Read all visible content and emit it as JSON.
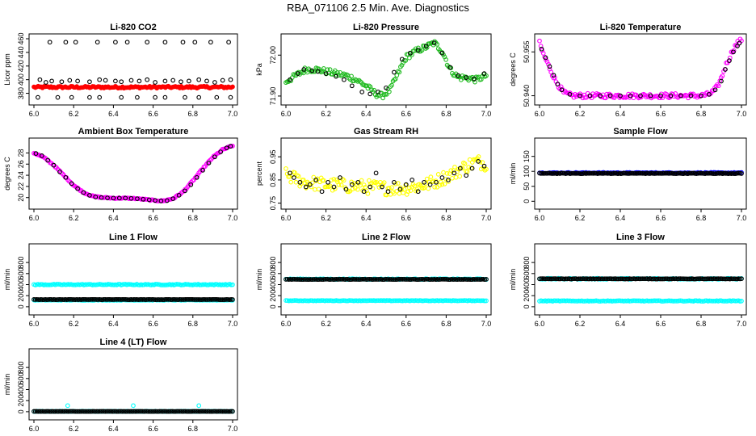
{
  "figure_title": "RBA_071106  2.5 Min. Ave. Diagnostics",
  "colors": {
    "red": "#ff0000",
    "green": "#22bb22",
    "magenta": "#ff00ff",
    "yellow": "#ffff00",
    "blue": "#0000ff",
    "cyan": "#00ffff",
    "black": "#000000"
  },
  "chart_data": [
    {
      "type": "scatter",
      "title": "Li-820 CO2",
      "xlabel": "",
      "ylabel": "Licor ppm",
      "xlim": [
        6.0,
        7.0
      ],
      "ylim": [
        370,
        460
      ],
      "xticks": [
        "6.0",
        "6.2",
        "6.4",
        "6.6",
        "6.8",
        "7.0"
      ],
      "yticks": [
        "380",
        "400",
        "420",
        "440",
        "460"
      ],
      "series": [
        {
          "name": "dense",
          "color": "red",
          "filled": true,
          "shape": "band",
          "x_start": 6.0,
          "x_end": 7.0,
          "y": 389,
          "jitter": 1.5
        },
        {
          "name": "scatter",
          "color": "black",
          "shape": "points",
          "x": [
            6.03,
            6.06,
            6.09,
            6.14,
            6.18,
            6.22,
            6.28,
            6.33,
            6.36,
            6.41,
            6.44,
            6.49,
            6.53,
            6.57,
            6.61,
            6.66,
            6.7,
            6.74,
            6.78,
            6.83,
            6.87,
            6.91,
            6.95,
            6.99
          ],
          "y": [
            400,
            396,
            398,
            397,
            399,
            398,
            397,
            400,
            399,
            398,
            397,
            399,
            398,
            400,
            396,
            398,
            399,
            397,
            398,
            400,
            398,
            396,
            399,
            400
          ]
        },
        {
          "name": "scatter",
          "color": "black",
          "shape": "points",
          "x": [
            6.08,
            6.16,
            6.21,
            6.32,
            6.41,
            6.47,
            6.57,
            6.66,
            6.75,
            6.81,
            6.89,
            6.98
          ],
          "y": [
            455,
            455,
            455,
            455,
            455,
            455,
            455,
            455,
            455,
            455,
            455,
            455
          ]
        },
        {
          "name": "scatter",
          "color": "black",
          "shape": "points",
          "x": [
            6.02,
            6.12,
            6.19,
            6.28,
            6.33,
            6.44,
            6.52,
            6.61,
            6.66,
            6.76,
            6.83,
            6.92,
            6.99
          ],
          "y": [
            374,
            374,
            374,
            374,
            374,
            374,
            374,
            374,
            374,
            374,
            374,
            374,
            374
          ]
        }
      ]
    },
    {
      "type": "scatter",
      "title": "Li-820 Pressure",
      "xlabel": "",
      "ylabel": "kPa",
      "xlim": [
        6.0,
        7.0
      ],
      "ylim": [
        71.89,
        72.04
      ],
      "xticks": [
        "6.0",
        "6.2",
        "6.4",
        "6.6",
        "6.8",
        "7.0"
      ],
      "yticks": [
        "71.90",
        "72.00"
      ],
      "series": [
        {
          "name": "dense",
          "color": "green",
          "shape": "curve",
          "x": [
            6.0,
            6.05,
            6.1,
            6.15,
            6.2,
            6.25,
            6.3,
            6.35,
            6.4,
            6.45,
            6.48,
            6.52,
            6.56,
            6.6,
            6.65,
            6.7,
            6.74,
            6.78,
            6.82,
            6.86,
            6.9,
            6.95,
            7.0
          ],
          "y": [
            71.935,
            71.95,
            71.965,
            71.965,
            71.96,
            71.955,
            71.95,
            71.94,
            71.925,
            71.905,
            71.9,
            71.915,
            71.955,
            71.995,
            72.01,
            72.02,
            72.03,
            72.01,
            71.965,
            71.945,
            71.945,
            71.94,
            71.95
          ],
          "jitter": 0.007
        },
        {
          "name": "black",
          "color": "black",
          "shape": "points",
          "x": [
            6.02,
            6.06,
            6.09,
            6.13,
            6.16,
            6.2,
            6.25,
            6.29,
            6.33,
            6.38,
            6.42,
            6.46,
            6.5,
            6.54,
            6.58,
            6.62,
            6.66,
            6.7,
            6.74,
            6.78,
            6.82,
            6.86,
            6.9,
            6.94,
            6.99
          ],
          "y": [
            71.94,
            71.955,
            71.965,
            71.962,
            71.96,
            71.955,
            71.948,
            71.94,
            71.925,
            71.91,
            71.905,
            71.91,
            71.92,
            71.958,
            71.99,
            72.005,
            72.012,
            72.022,
            72.03,
            72.005,
            71.97,
            71.95,
            71.945,
            71.942,
            71.955
          ]
        }
      ]
    },
    {
      "type": "scatter",
      "title": "Li-820 Temperature",
      "xlabel": "",
      "ylabel": "degrees C",
      "xlim": [
        6.0,
        7.0
      ],
      "ylim": [
        50.9385,
        50.9595
      ],
      "xticks": [
        "6.0",
        "6.2",
        "6.4",
        "6.6",
        "6.8",
        "7.0"
      ],
      "yticks": [
        "50.940",
        "50.955"
      ],
      "series": [
        {
          "name": "dense",
          "color": "magenta",
          "shape": "curve",
          "x": [
            6.0,
            6.02,
            6.04,
            6.06,
            6.08,
            6.1,
            6.12,
            6.14,
            6.16,
            6.2,
            6.3,
            6.5,
            6.7,
            6.8,
            6.84,
            6.86,
            6.88,
            6.9,
            6.92,
            6.94,
            6.96,
            6.98,
            7.0
          ],
          "y": [
            50.958,
            50.954,
            50.951,
            50.948,
            50.945,
            50.943,
            50.941,
            50.9405,
            50.94,
            50.94,
            50.94,
            50.94,
            50.94,
            50.94,
            50.9405,
            50.9415,
            50.943,
            50.946,
            50.95,
            50.953,
            50.956,
            50.958,
            50.959
          ],
          "jitter": 0.0008
        },
        {
          "name": "black",
          "color": "black",
          "shape": "points",
          "x": [
            6.01,
            6.03,
            6.05,
            6.07,
            6.09,
            6.11,
            6.15,
            6.2,
            6.25,
            6.3,
            6.35,
            6.4,
            6.45,
            6.5,
            6.55,
            6.6,
            6.65,
            6.7,
            6.75,
            6.8,
            6.84,
            6.87,
            6.9,
            6.92,
            6.94,
            6.96,
            6.98,
            6.99
          ],
          "y": [
            50.956,
            50.953,
            50.95,
            50.947,
            50.944,
            50.942,
            50.9405,
            50.94,
            50.94,
            50.94,
            50.94,
            50.94,
            50.94,
            50.94,
            50.94,
            50.94,
            50.94,
            50.94,
            50.94,
            50.94,
            50.9405,
            50.942,
            50.945,
            50.949,
            50.952,
            50.955,
            50.957,
            50.958
          ]
        }
      ]
    },
    {
      "type": "scatter",
      "title": "Ambient Box Temperature",
      "xlabel": "",
      "ylabel": "degrees C",
      "xlim": [
        6.0,
        7.0
      ],
      "ylim": [
        18.8,
        29.8
      ],
      "xticks": [
        "6.0",
        "6.2",
        "6.4",
        "6.6",
        "6.8",
        "7.0"
      ],
      "yticks": [
        "20",
        "22",
        "24",
        "26",
        "28"
      ],
      "series": [
        {
          "name": "dense",
          "color": "magenta",
          "shape": "curve",
          "x": [
            6.0,
            6.05,
            6.1,
            6.15,
            6.2,
            6.25,
            6.3,
            6.35,
            6.4,
            6.45,
            6.5,
            6.55,
            6.6,
            6.65,
            6.7,
            6.75,
            6.8,
            6.85,
            6.9,
            6.95,
            7.0
          ],
          "y": [
            28.0,
            27.2,
            25.8,
            24.0,
            22.2,
            20.9,
            20.2,
            20.0,
            19.9,
            19.9,
            19.85,
            19.7,
            19.5,
            19.4,
            19.8,
            21.0,
            23.0,
            25.2,
            27.2,
            28.6,
            29.3
          ],
          "jitter": 0.1
        },
        {
          "name": "black",
          "color": "black",
          "shape": "points",
          "x": [
            6.01,
            6.04,
            6.07,
            6.1,
            6.13,
            6.16,
            6.19,
            6.22,
            6.25,
            6.28,
            6.31,
            6.34,
            6.37,
            6.4,
            6.43,
            6.46,
            6.49,
            6.52,
            6.55,
            6.58,
            6.61,
            6.64,
            6.67,
            6.7,
            6.73,
            6.76,
            6.79,
            6.82,
            6.85,
            6.88,
            6.91,
            6.94,
            6.97,
            6.99
          ],
          "y": [
            27.9,
            27.5,
            26.7,
            25.8,
            24.6,
            23.6,
            22.5,
            21.6,
            20.9,
            20.4,
            20.1,
            20.0,
            19.95,
            19.9,
            19.9,
            19.9,
            19.85,
            19.8,
            19.7,
            19.6,
            19.5,
            19.4,
            19.45,
            19.8,
            20.4,
            21.2,
            22.3,
            23.6,
            24.9,
            26.2,
            27.3,
            28.2,
            28.9,
            29.2
          ]
        }
      ]
    },
    {
      "type": "scatter",
      "title": "Gas Stream RH",
      "xlabel": "",
      "ylabel": "percent",
      "xlim": [
        6.0,
        7.0
      ],
      "ylim": [
        0.745,
        1.01
      ],
      "xticks": [
        "6.0",
        "6.2",
        "6.4",
        "6.6",
        "6.8",
        "7.0"
      ],
      "yticks": [
        "0.75",
        "0.85",
        "0.95"
      ],
      "series": [
        {
          "name": "dense",
          "color": "yellow",
          "shape": "curve",
          "x": [
            6.0,
            6.1,
            6.2,
            6.3,
            6.4,
            6.5,
            6.6,
            6.7,
            6.75,
            6.8,
            6.85,
            6.9,
            6.95,
            7.0
          ],
          "y": [
            0.87,
            0.84,
            0.83,
            0.825,
            0.82,
            0.815,
            0.815,
            0.83,
            0.845,
            0.865,
            0.885,
            0.91,
            0.93,
            0.92
          ],
          "jitter": 0.03
        },
        {
          "name": "black",
          "color": "black",
          "shape": "points",
          "x": [
            6.02,
            6.04,
            6.07,
            6.1,
            6.12,
            6.15,
            6.18,
            6.21,
            6.24,
            6.27,
            6.3,
            6.33,
            6.36,
            6.39,
            6.42,
            6.45,
            6.48,
            6.51,
            6.54,
            6.57,
            6.6,
            6.63,
            6.66,
            6.69,
            6.72,
            6.75,
            6.78,
            6.81,
            6.84,
            6.87,
            6.9,
            6.93,
            6.96,
            6.99
          ],
          "y": [
            0.88,
            0.86,
            0.84,
            0.82,
            0.83,
            0.85,
            0.8,
            0.84,
            0.82,
            0.86,
            0.81,
            0.83,
            0.84,
            0.8,
            0.82,
            0.88,
            0.82,
            0.8,
            0.84,
            0.81,
            0.83,
            0.85,
            0.8,
            0.84,
            0.83,
            0.84,
            0.86,
            0.85,
            0.88,
            0.9,
            0.87,
            0.9,
            0.93,
            0.91
          ]
        }
      ]
    },
    {
      "type": "scatter",
      "title": "Sample Flow",
      "xlabel": "",
      "ylabel": "ml/min",
      "xlim": [
        6.0,
        7.0
      ],
      "ylim": [
        -10,
        195
      ],
      "xticks": [
        "6.0",
        "6.2",
        "6.4",
        "6.6",
        "6.8",
        "7.0"
      ],
      "yticks": [
        "0",
        "50",
        "100",
        "150"
      ],
      "series": [
        {
          "name": "dense",
          "color": "blue",
          "shape": "band",
          "x_start": 6.0,
          "x_end": 7.0,
          "y": 95,
          "jitter": 1.5
        },
        {
          "name": "black",
          "color": "black",
          "shape": "band",
          "x_start": 6.0,
          "x_end": 7.0,
          "y": 93,
          "jitter": 1.0
        }
      ]
    },
    {
      "type": "scatter",
      "title": "Line 1 Flow",
      "xlabel": "",
      "ylabel": "ml/min",
      "xlim": [
        6.0,
        7.0
      ],
      "ylim": [
        -60,
        1050
      ],
      "xticks": [
        "6.0",
        "6.2",
        "6.4",
        "6.6",
        "6.8",
        "7.0"
      ],
      "yticks": [
        "0",
        "200",
        "400",
        "600",
        "800"
      ],
      "series": [
        {
          "name": "upper",
          "color": "cyan",
          "shape": "band",
          "x_start": 6.0,
          "x_end": 7.0,
          "y": 400,
          "jitter": 8
        },
        {
          "name": "lower",
          "color": "cyan",
          "shape": "band",
          "x_start": 6.0,
          "x_end": 7.0,
          "y": 120,
          "jitter": 5
        },
        {
          "name": "black",
          "color": "black",
          "shape": "band",
          "x_start": 6.0,
          "x_end": 7.0,
          "y": 130,
          "jitter": 2
        }
      ]
    },
    {
      "type": "scatter",
      "title": "Line 2 Flow",
      "xlabel": "",
      "ylabel": "ml/min",
      "xlim": [
        6.0,
        7.0
      ],
      "ylim": [
        -60,
        1050
      ],
      "xticks": [
        "6.0",
        "6.2",
        "6.4",
        "6.6",
        "6.8",
        "7.0"
      ],
      "yticks": [
        "0",
        "200",
        "400",
        "600",
        "800"
      ],
      "series": [
        {
          "name": "upper",
          "color": "cyan",
          "shape": "band",
          "x_start": 6.0,
          "x_end": 7.0,
          "y": 500,
          "jitter": 8
        },
        {
          "name": "lower",
          "color": "cyan",
          "shape": "band",
          "x_start": 6.0,
          "x_end": 7.0,
          "y": 110,
          "jitter": 4
        },
        {
          "name": "black",
          "color": "black",
          "shape": "band",
          "x_start": 6.0,
          "x_end": 7.0,
          "y": 495,
          "jitter": 3
        }
      ]
    },
    {
      "type": "scatter",
      "title": "Line 3 Flow",
      "xlabel": "",
      "ylabel": "ml/min",
      "xlim": [
        6.0,
        7.0
      ],
      "ylim": [
        -60,
        1050
      ],
      "xticks": [
        "6.0",
        "6.2",
        "6.4",
        "6.6",
        "6.8",
        "7.0"
      ],
      "yticks": [
        "0",
        "200",
        "400",
        "600",
        "800"
      ],
      "series": [
        {
          "name": "upper",
          "color": "cyan",
          "shape": "band",
          "x_start": 6.0,
          "x_end": 7.0,
          "y": 505,
          "jitter": 10
        },
        {
          "name": "lower",
          "color": "cyan",
          "shape": "band",
          "x_start": 6.0,
          "x_end": 7.0,
          "y": 105,
          "jitter": 6
        },
        {
          "name": "black",
          "color": "black",
          "shape": "band",
          "x_start": 6.0,
          "x_end": 7.0,
          "y": 505,
          "jitter": 4
        }
      ]
    },
    {
      "type": "scatter",
      "title": "Line 4 (LT) Flow",
      "xlabel": "",
      "ylabel": "ml/min",
      "xlim": [
        6.0,
        7.0
      ],
      "ylim": [
        -60,
        1050
      ],
      "xticks": [
        "6.0",
        "6.2",
        "6.4",
        "6.6",
        "6.8",
        "7.0"
      ],
      "yticks": [
        "0",
        "200",
        "400",
        "600",
        "800"
      ],
      "series": [
        {
          "name": "cyan",
          "color": "cyan",
          "shape": "band",
          "x_start": 6.0,
          "x_end": 7.0,
          "y": 5,
          "jitter": 2
        },
        {
          "name": "cyan-spikes",
          "color": "cyan",
          "shape": "points",
          "x": [
            6.17,
            6.5,
            6.83
          ],
          "y": [
            110,
            110,
            110
          ]
        },
        {
          "name": "black",
          "color": "black",
          "shape": "band",
          "x_start": 6.0,
          "x_end": 7.0,
          "y": 5,
          "jitter": 1
        }
      ]
    }
  ]
}
